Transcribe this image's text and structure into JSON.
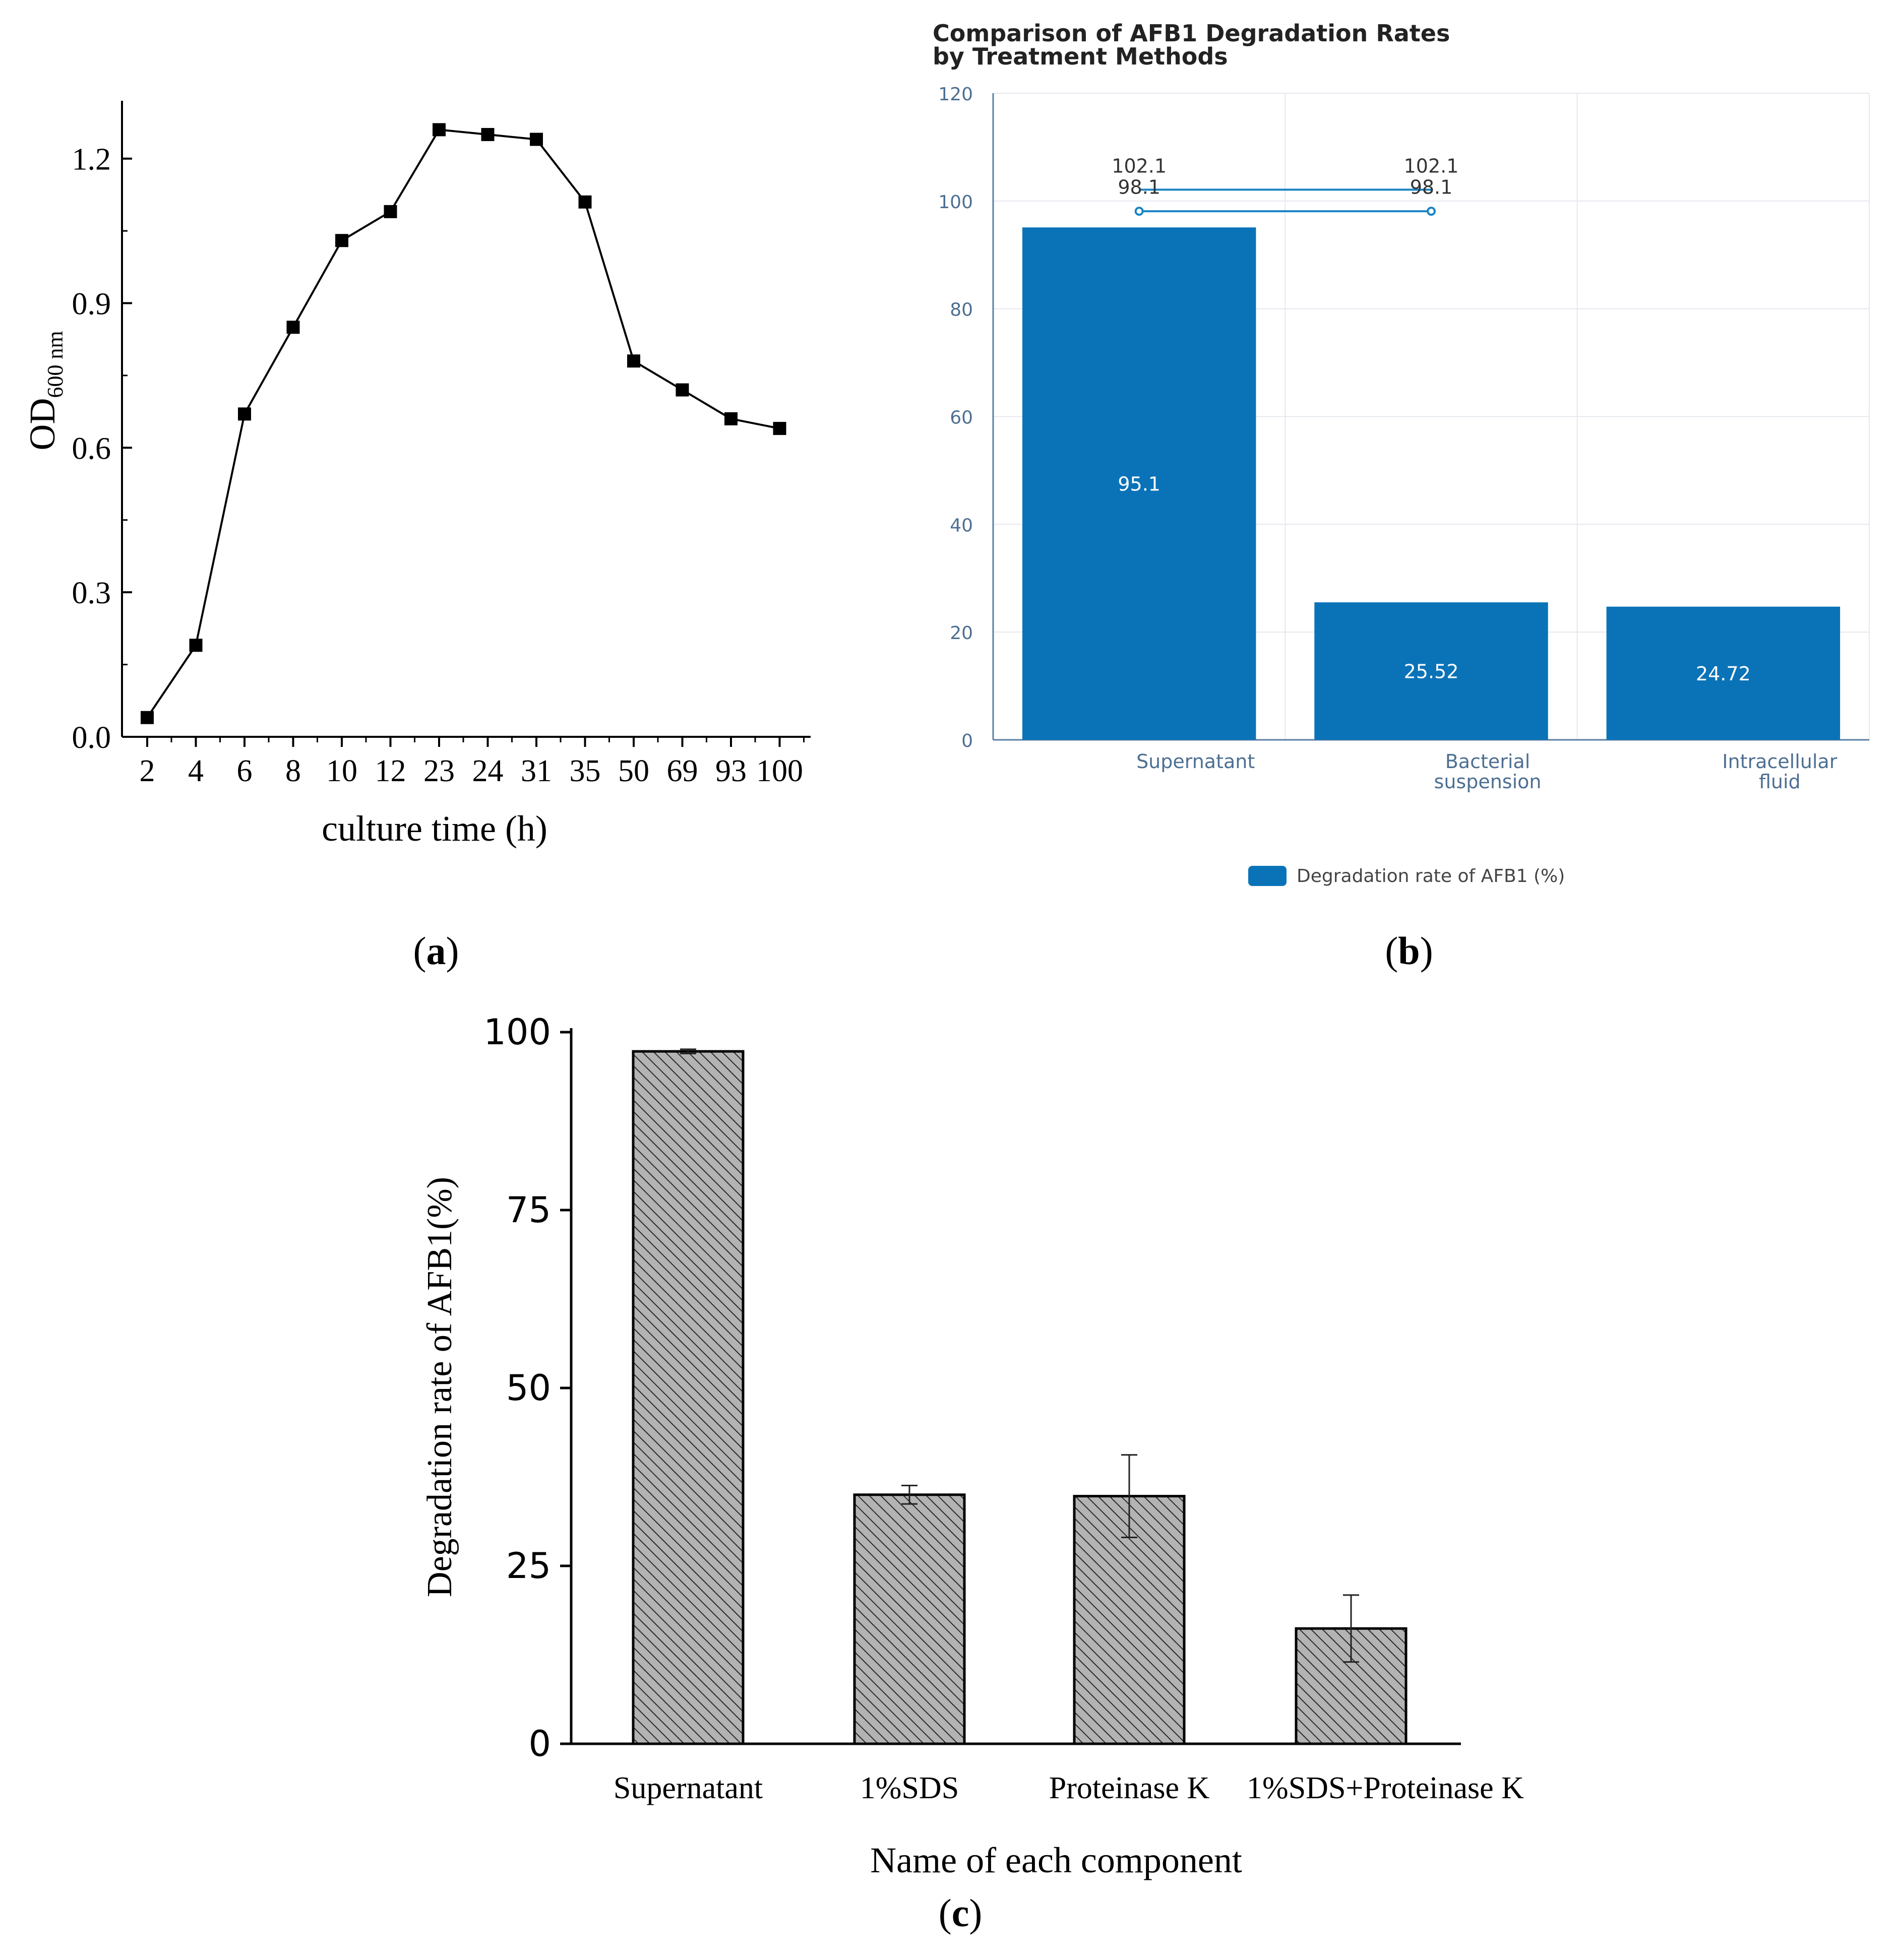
{
  "colors": {
    "panel_b_bar": "#0a73b8",
    "panel_b_axis_text": "#4d6f92",
    "panel_b_grid": "#e4e8ee",
    "panel_b_line": "#1a84c4",
    "panel_c_bar": "#b3b3b3",
    "black": "#000000"
  },
  "panel_labels": {
    "a": "a",
    "b": "b",
    "c": "c"
  },
  "chart_data": [
    {
      "id": "a",
      "type": "line",
      "title": "",
      "xlabel": "culture time (h)",
      "ylabel": {
        "main": "OD",
        "sub": "600 nm"
      },
      "categories": [
        "2",
        "4",
        "6",
        "8",
        "10",
        "12",
        "23",
        "24",
        "31",
        "35",
        "50",
        "69",
        "93",
        "100"
      ],
      "values": [
        0.04,
        0.19,
        0.67,
        0.85,
        1.03,
        1.09,
        1.26,
        1.25,
        1.24,
        1.11,
        0.78,
        0.72,
        0.66,
        0.64
      ],
      "ylim": [
        0.0,
        1.32
      ],
      "yticks": [
        "0.0",
        "0.3",
        "0.6",
        "0.9",
        "1.2"
      ],
      "ytick_values": [
        0.0,
        0.3,
        0.6,
        0.9,
        1.2
      ],
      "marker": "square"
    },
    {
      "id": "b",
      "type": "bar",
      "title_lines": [
        "Comparison of AFB1 Degradation Rates",
        "by Treatment Methods"
      ],
      "categories": [
        [
          "Supernatant"
        ],
        [
          "Bacterial",
          "suspension"
        ],
        [
          "Intracellular",
          "fluid"
        ]
      ],
      "series": [
        {
          "name": "Degradation rate of AFB1 (%)",
          "values": [
            95.1,
            25.52,
            24.72
          ]
        }
      ],
      "data_labels": [
        "95.1",
        "25.52",
        "24.72"
      ],
      "ylim": [
        0,
        120
      ],
      "yticks": [
        "0",
        "20",
        "40",
        "60",
        "80",
        "100",
        "120"
      ],
      "ytick_values": [
        0,
        20,
        40,
        60,
        80,
        100,
        120
      ],
      "significance": {
        "from_category": 0,
        "to_category": 1,
        "lower_value": 98.1,
        "upper_value": 102.1,
        "labels_upper": [
          "102.1",
          "102.1"
        ],
        "labels_lower": [
          "98.1",
          "98.1"
        ]
      },
      "legend": {
        "label": "Degradation rate of AFB1 (%)",
        "position": "bottom-center"
      },
      "grid": true
    },
    {
      "id": "c",
      "type": "bar",
      "title": "",
      "xlabel": "Name of each component",
      "ylabel": "Degradation rate of AFB1(%)",
      "categories": [
        "Supernatant",
        "1%SDS",
        "Proteinase K",
        "1%SDS+Proteinase K"
      ],
      "values": [
        97.3,
        35.0,
        34.8,
        16.2
      ],
      "errors": [
        0.3,
        1.3,
        5.8,
        4.7
      ],
      "ylim": [
        0,
        100
      ],
      "yticks": [
        "0",
        "25",
        "50",
        "75",
        "100"
      ],
      "ytick_values": [
        0,
        25,
        50,
        75,
        100
      ],
      "pattern": "diagonal-hatch"
    }
  ]
}
